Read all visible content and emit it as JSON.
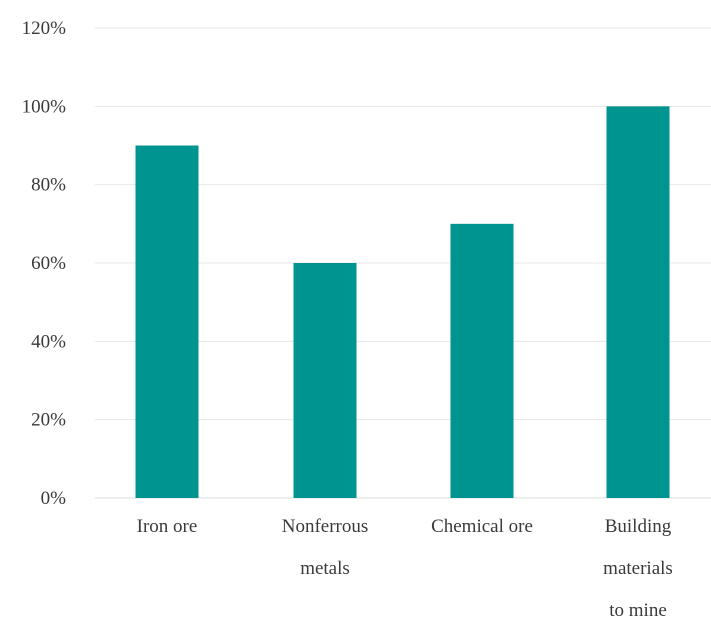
{
  "chart_data": {
    "type": "bar",
    "categories": [
      [
        "Iron ore"
      ],
      [
        "Nonferrous",
        "metals"
      ],
      [
        "Chemical ore"
      ],
      [
        "Building",
        "materials",
        "to mine"
      ]
    ],
    "values": [
      90,
      60,
      70,
      100
    ],
    "ylim": [
      0,
      120
    ],
    "yticks": [
      "0%",
      "20%",
      "40%",
      "60%",
      "80%",
      "100%",
      "120%"
    ],
    "grid": true,
    "bar_color": "#009490"
  }
}
